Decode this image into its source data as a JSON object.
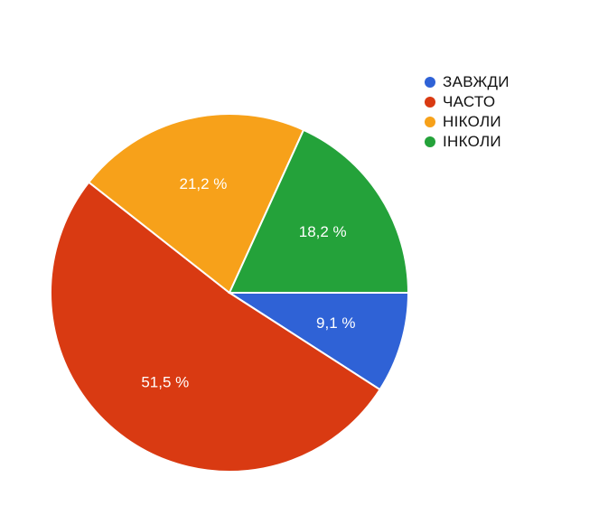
{
  "chart_data": {
    "type": "pie",
    "categories": [
      "ЗАВЖДИ",
      "ЧАСТО",
      "НІКОЛИ",
      "ІНКОЛИ"
    ],
    "values": [
      9.1,
      51.5,
      21.2,
      18.2
    ],
    "value_labels": [
      "9,1 %",
      "51,5 %",
      "21,2 %",
      "18,2 %"
    ],
    "colors": [
      "#2F62D6",
      "#D93A12",
      "#F7A11A",
      "#24A23A"
    ],
    "legend_position": "top-right",
    "title": ""
  }
}
